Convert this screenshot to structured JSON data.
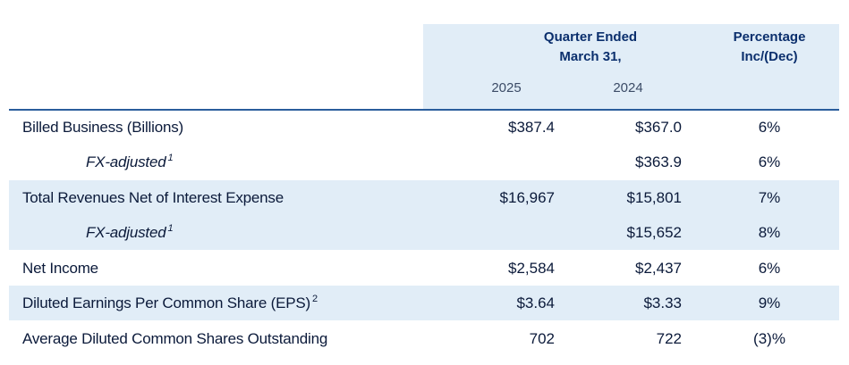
{
  "header": {
    "quarter_line1": "Quarter Ended",
    "quarter_line2": "March 31,",
    "pct_line1": "Percentage",
    "pct_line2": "Inc/(Dec)",
    "year1": "2025",
    "year2": "2024"
  },
  "rows": [
    {
      "label": "Billed Business (Billions)",
      "sup": "",
      "y2025": "$387.4",
      "y2024": "$367.0",
      "pct": "6%"
    },
    {
      "label": "FX-adjusted",
      "sup": "1",
      "y2025": "",
      "y2024": "$363.9",
      "pct": "6%"
    },
    {
      "label": "Total Revenues Net of Interest Expense",
      "sup": "",
      "y2025": "$16,967",
      "y2024": "$15,801",
      "pct": "7%"
    },
    {
      "label": "FX-adjusted",
      "sup": "1",
      "y2025": "",
      "y2024": "$15,652",
      "pct": "8%"
    },
    {
      "label": "Net Income",
      "sup": "",
      "y2025": "$2,584",
      "y2024": "$2,437",
      "pct": "6%"
    },
    {
      "label": "Diluted Earnings Per Common Share (EPS)",
      "sup": "2",
      "y2025": "$3.64",
      "y2024": "$3.33",
      "pct": "9%"
    },
    {
      "label": "Average Diluted Common Shares Outstanding",
      "sup": "",
      "y2025": "702",
      "y2024": "722",
      "pct": "(3)%"
    }
  ],
  "colors": {
    "header_fill": "#e1edf7",
    "rule": "#2a5d9c",
    "header_text": "#0b2f6d",
    "body_text": "#0b1a3a"
  }
}
